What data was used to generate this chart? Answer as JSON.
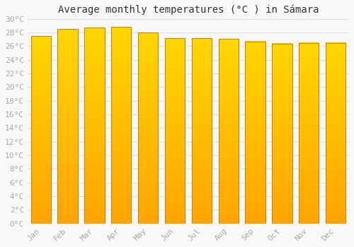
{
  "title": "Average monthly temperatures (°C ) in Sámara",
  "months": [
    "Jan",
    "Feb",
    "Mar",
    "Apr",
    "May",
    "Jun",
    "Jul",
    "Aug",
    "Sep",
    "Oct",
    "Nov",
    "Dec"
  ],
  "values": [
    27.5,
    28.5,
    28.7,
    28.8,
    28.0,
    27.2,
    27.2,
    27.1,
    26.7,
    26.4,
    26.5,
    26.5
  ],
  "bar_color_top": "#FFD700",
  "bar_color_bottom": "#FFA500",
  "bar_edge_color": "#C8880A",
  "background_color": "#F8F8F8",
  "grid_color": "#DDDDDD",
  "ylim": [
    0,
    30
  ],
  "yticks": [
    0,
    2,
    4,
    6,
    8,
    10,
    12,
    14,
    16,
    18,
    20,
    22,
    24,
    26,
    28,
    30
  ],
  "title_fontsize": 10,
  "tick_fontsize": 8,
  "tick_color": "#AAAAAA",
  "font_family": "monospace",
  "bar_width": 0.75
}
